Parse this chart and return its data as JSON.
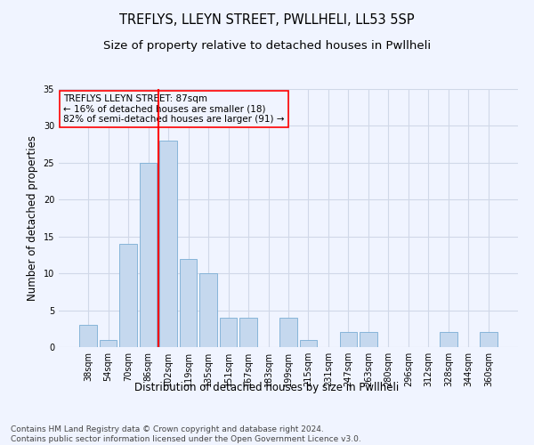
{
  "title": "TREFLYS, LLEYN STREET, PWLLHELI, LL53 5SP",
  "subtitle": "Size of property relative to detached houses in Pwllheli",
  "xlabel": "Distribution of detached houses by size in Pwllheli",
  "ylabel": "Number of detached properties",
  "categories": [
    "38sqm",
    "54sqm",
    "70sqm",
    "86sqm",
    "102sqm",
    "119sqm",
    "135sqm",
    "151sqm",
    "167sqm",
    "183sqm",
    "199sqm",
    "215sqm",
    "231sqm",
    "247sqm",
    "263sqm",
    "280sqm",
    "296sqm",
    "312sqm",
    "328sqm",
    "344sqm",
    "360sqm"
  ],
  "values": [
    3,
    1,
    14,
    25,
    28,
    12,
    10,
    4,
    4,
    0,
    4,
    1,
    0,
    2,
    2,
    0,
    0,
    0,
    2,
    0,
    2
  ],
  "bar_color": "#c5d8ee",
  "bar_edge_color": "#7aadd4",
  "ylim": [
    0,
    35
  ],
  "yticks": [
    0,
    5,
    10,
    15,
    20,
    25,
    30,
    35
  ],
  "red_line_x": 3.5,
  "annotation_title": "TREFLYS LLEYN STREET: 87sqm",
  "annotation_line1": "← 16% of detached houses are smaller (18)",
  "annotation_line2": "82% of semi-detached houses are larger (91) →",
  "footer_line1": "Contains HM Land Registry data © Crown copyright and database right 2024.",
  "footer_line2": "Contains public sector information licensed under the Open Government Licence v3.0.",
  "bg_color": "#f0f4ff",
  "grid_color": "#d0d8e8",
  "title_fontsize": 10.5,
  "subtitle_fontsize": 9.5,
  "ylabel_fontsize": 8.5,
  "xlabel_fontsize": 8.5,
  "tick_fontsize": 7,
  "annot_fontsize": 7.5,
  "footer_fontsize": 6.5
}
